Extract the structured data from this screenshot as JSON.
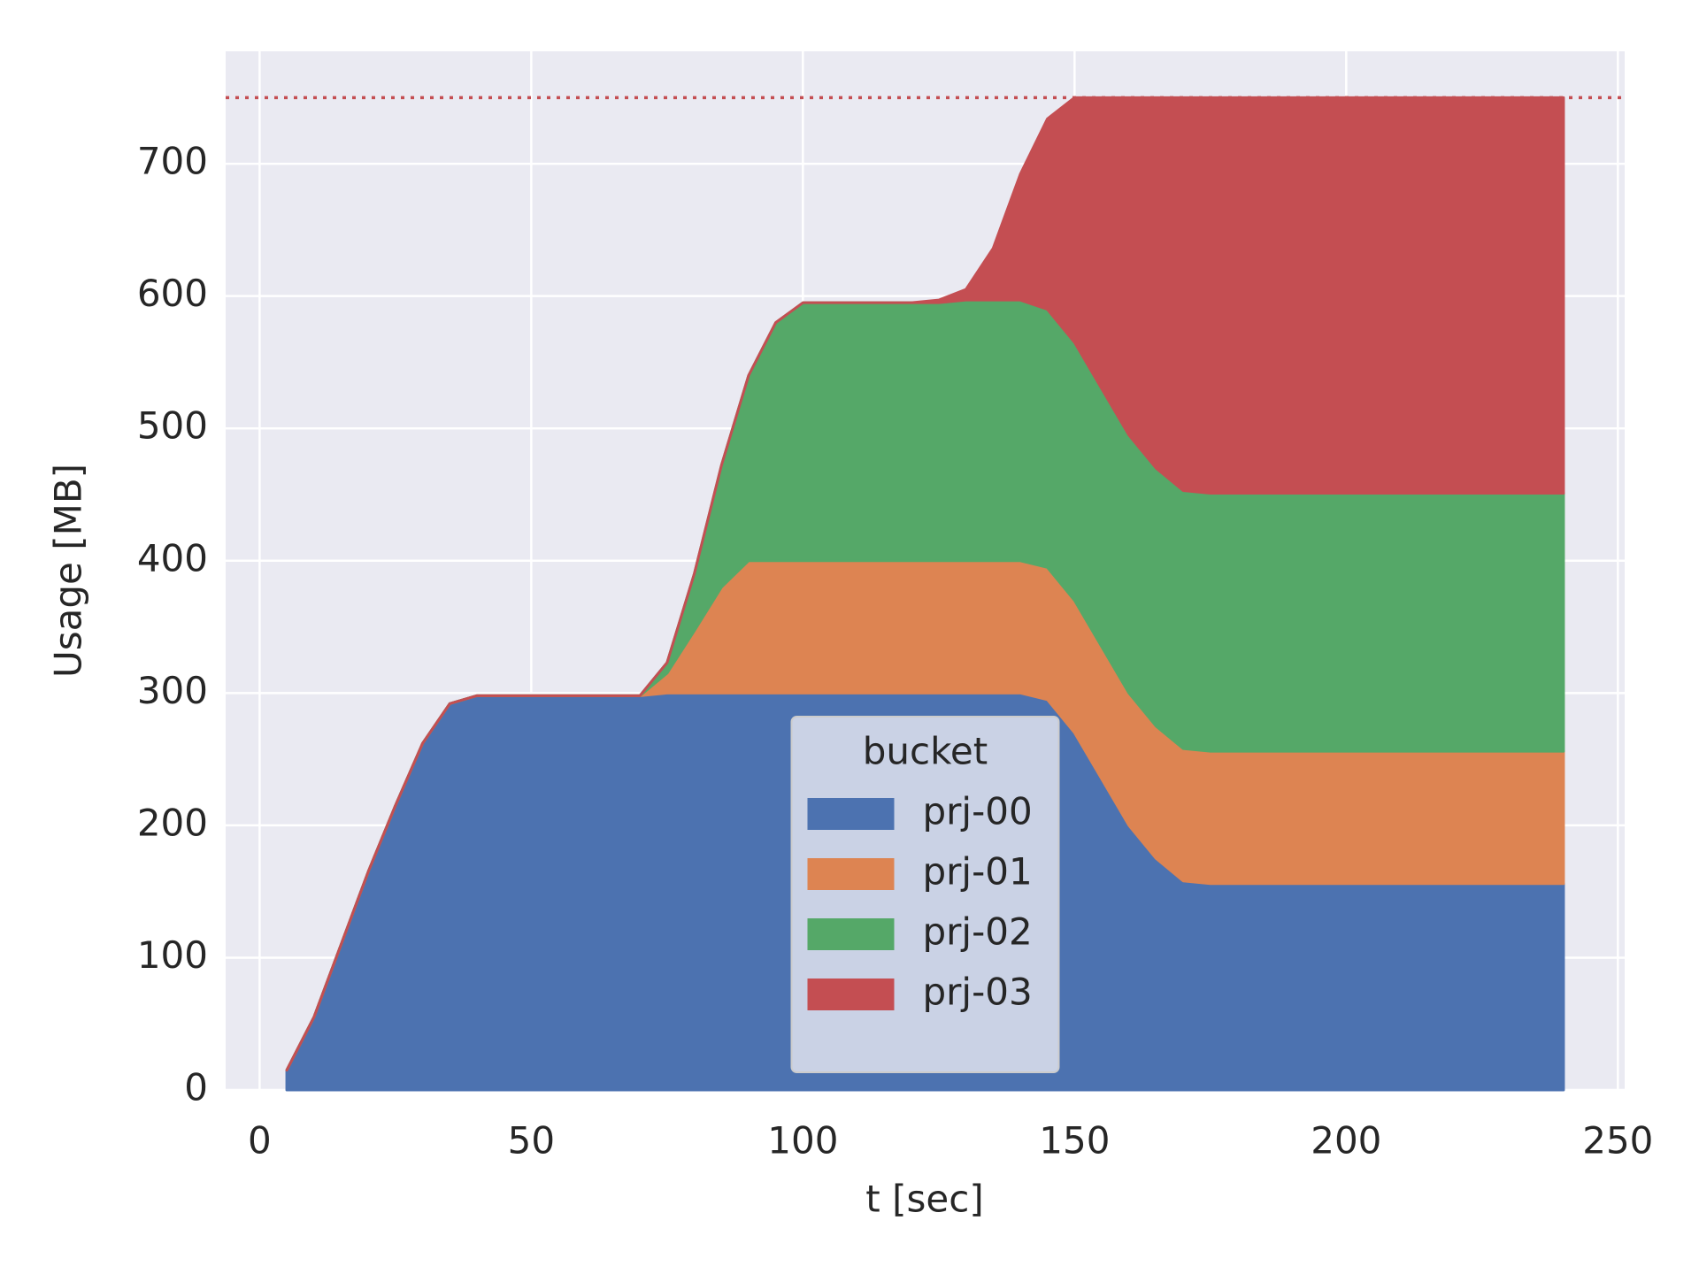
{
  "chart_data": {
    "type": "stacked_area",
    "x_label": "t [sec]",
    "y_label": "Usage [MB]",
    "x": [
      5,
      10,
      15,
      20,
      25,
      30,
      35,
      40,
      45,
      50,
      55,
      60,
      65,
      70,
      75,
      80,
      85,
      90,
      95,
      100,
      105,
      110,
      115,
      120,
      125,
      130,
      135,
      140,
      145,
      150,
      155,
      160,
      165,
      170,
      175,
      180,
      185,
      190,
      195,
      200,
      205,
      210,
      215,
      220,
      225,
      230,
      235,
      240
    ],
    "series": [
      {
        "name": "prj-00",
        "color": "#4c72b0",
        "values": [
          15,
          55,
          110,
          165,
          215,
          262,
          292,
          298,
          298,
          298,
          298,
          298,
          298,
          298,
          300,
          300,
          300,
          300,
          300,
          300,
          300,
          300,
          300,
          300,
          300,
          300,
          300,
          300,
          295,
          270,
          235,
          200,
          175,
          158,
          156,
          156,
          156,
          156,
          156,
          156,
          156,
          156,
          156,
          156,
          156,
          156,
          156,
          156
        ]
      },
      {
        "name": "prj-01",
        "color": "#dd8452",
        "values": [
          0,
          0,
          0,
          0,
          0,
          0,
          0,
          0,
          0,
          0,
          0,
          0,
          0,
          0,
          15,
          47,
          80,
          100,
          100,
          100,
          100,
          100,
          100,
          100,
          100,
          100,
          100,
          100,
          100,
          100,
          100,
          100,
          100,
          100,
          100,
          100,
          100,
          100,
          100,
          100,
          100,
          100,
          100,
          100,
          100,
          100,
          100,
          100
        ]
      },
      {
        "name": "prj-02",
        "color": "#55a868",
        "values": [
          0,
          0,
          0,
          0,
          0,
          0,
          0,
          0,
          0,
          0,
          0,
          0,
          0,
          0,
          8,
          43,
          92,
          140,
          180,
          195,
          195,
          195,
          195,
          195,
          195,
          197,
          197,
          197,
          195,
          195,
          195,
          195,
          195,
          195,
          195,
          195,
          195,
          195,
          195,
          195,
          195,
          195,
          195,
          195,
          195,
          195,
          195,
          195
        ]
      },
      {
        "name": "prj-03",
        "color": "#c44e52",
        "values": [
          0,
          0,
          0,
          0,
          0,
          0,
          0,
          0,
          0,
          0,
          0,
          0,
          0,
          0,
          0,
          0,
          0,
          0,
          0,
          0,
          0,
          0,
          0,
          0,
          2,
          8,
          39,
          95,
          144,
          185,
          220,
          255,
          280,
          297,
          299,
          299,
          299,
          299,
          299,
          299,
          299,
          299,
          299,
          299,
          299,
          299,
          299,
          299
        ]
      }
    ],
    "xlim": [
      -6.25,
      251.25
    ],
    "ylim": [
      0,
      785
    ],
    "xticks": [
      0,
      50,
      100,
      150,
      200,
      250
    ],
    "yticks": [
      0,
      100,
      200,
      300,
      400,
      500,
      600,
      700
    ],
    "grid": true,
    "hline": {
      "value": 750,
      "color": "#c44e52",
      "style": "dotted"
    },
    "legend_title": "bucket",
    "legend": "lower center"
  }
}
